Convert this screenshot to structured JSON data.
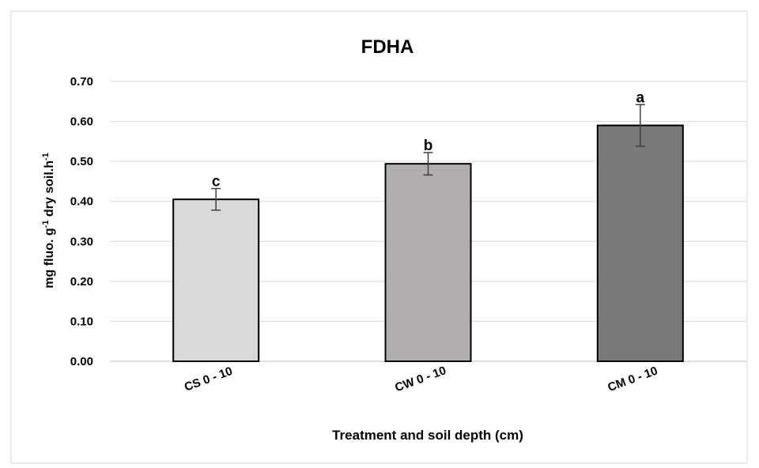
{
  "chart_data": {
    "type": "bar",
    "title": "FDHA",
    "xlabel": "Treatment and soil depth (cm)",
    "ylabel": {
      "part1": "mg fluo. g",
      "sup1": "-1",
      "part2": " dry soil.h",
      "sup2": "-1"
    },
    "categories": [
      "CS 0 - 10",
      "CW 0 - 10",
      "CM 0 - 10"
    ],
    "values": [
      0.405,
      0.494,
      0.59
    ],
    "errors": [
      0.027,
      0.028,
      0.052
    ],
    "significance_letters": [
      "c",
      "b",
      "a"
    ],
    "bar_colors": [
      "#d9d9d9",
      "#b3aeae",
      "#7a7a7a"
    ],
    "ylim": [
      0,
      0.7
    ],
    "yticks": [
      "0.00",
      "0.10",
      "0.20",
      "0.30",
      "0.40",
      "0.50",
      "0.60",
      "0.70"
    ],
    "grid": true,
    "legend": "none"
  }
}
